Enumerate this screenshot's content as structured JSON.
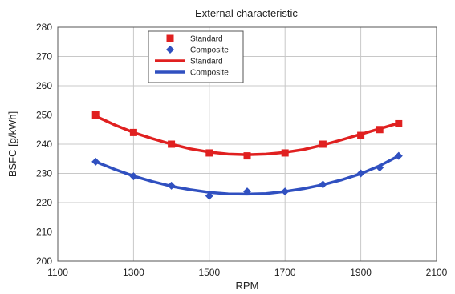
{
  "chart_data": {
    "type": "line",
    "title": "External characteristic",
    "xlabel": "RPM",
    "ylabel": "BSFC [g/kWh]",
    "xlim": [
      1100,
      2100
    ],
    "ylim": [
      200,
      280
    ],
    "xticks": [
      1100,
      1300,
      1500,
      1700,
      1900,
      2100
    ],
    "yticks": [
      200,
      210,
      220,
      230,
      240,
      250,
      260,
      270,
      280
    ],
    "grid": true,
    "legend_position": "top-left",
    "legend": [
      {
        "name": "Standard",
        "kind": "marker",
        "marker": "square",
        "color": "#e02020"
      },
      {
        "name": "Composite",
        "kind": "marker",
        "marker": "diamond",
        "color": "#3050c0"
      },
      {
        "name": "Standard",
        "kind": "line",
        "color": "#e02020"
      },
      {
        "name": "Composite",
        "kind": "line",
        "color": "#3050c0"
      }
    ],
    "series": [
      {
        "name": "Standard",
        "marker": "square",
        "color": "#e02020",
        "x": [
          1200,
          1300,
          1400,
          1500,
          1600,
          1700,
          1800,
          1900,
          1950,
          2000
        ],
        "y": [
          250,
          244,
          240,
          237,
          236,
          237,
          240,
          243,
          245,
          247
        ]
      },
      {
        "name": "Composite",
        "marker": "diamond",
        "color": "#3050c0",
        "x": [
          1200,
          1300,
          1400,
          1500,
          1600,
          1700,
          1800,
          1900,
          1950,
          2000
        ],
        "y": [
          234,
          229,
          225.8,
          222.3,
          223.8,
          223.8,
          226.2,
          230,
          232,
          236
        ]
      }
    ],
    "fit_lines": [
      {
        "name": "Standard",
        "color": "#e02020",
        "x": [
          1200,
          1250,
          1300,
          1350,
          1400,
          1450,
          1500,
          1550,
          1600,
          1650,
          1700,
          1750,
          1800,
          1850,
          1900,
          1950,
          2000
        ],
        "y": [
          249.6,
          246.6,
          244.0,
          241.9,
          240.0,
          238.4,
          237.3,
          236.6,
          236.4,
          236.6,
          237.2,
          238.2,
          239.7,
          241.5,
          243.4,
          245.3,
          247.2
        ]
      },
      {
        "name": "Composite",
        "color": "#3050c0",
        "x": [
          1200,
          1250,
          1300,
          1350,
          1400,
          1450,
          1500,
          1550,
          1600,
          1650,
          1700,
          1750,
          1800,
          1850,
          1900,
          1950,
          2000
        ],
        "y": [
          234.0,
          231.4,
          229.1,
          227.2,
          225.6,
          224.4,
          223.5,
          223.0,
          222.9,
          223.1,
          223.8,
          224.8,
          226.1,
          227.8,
          229.9,
          232.6,
          236.0
        ]
      }
    ]
  }
}
